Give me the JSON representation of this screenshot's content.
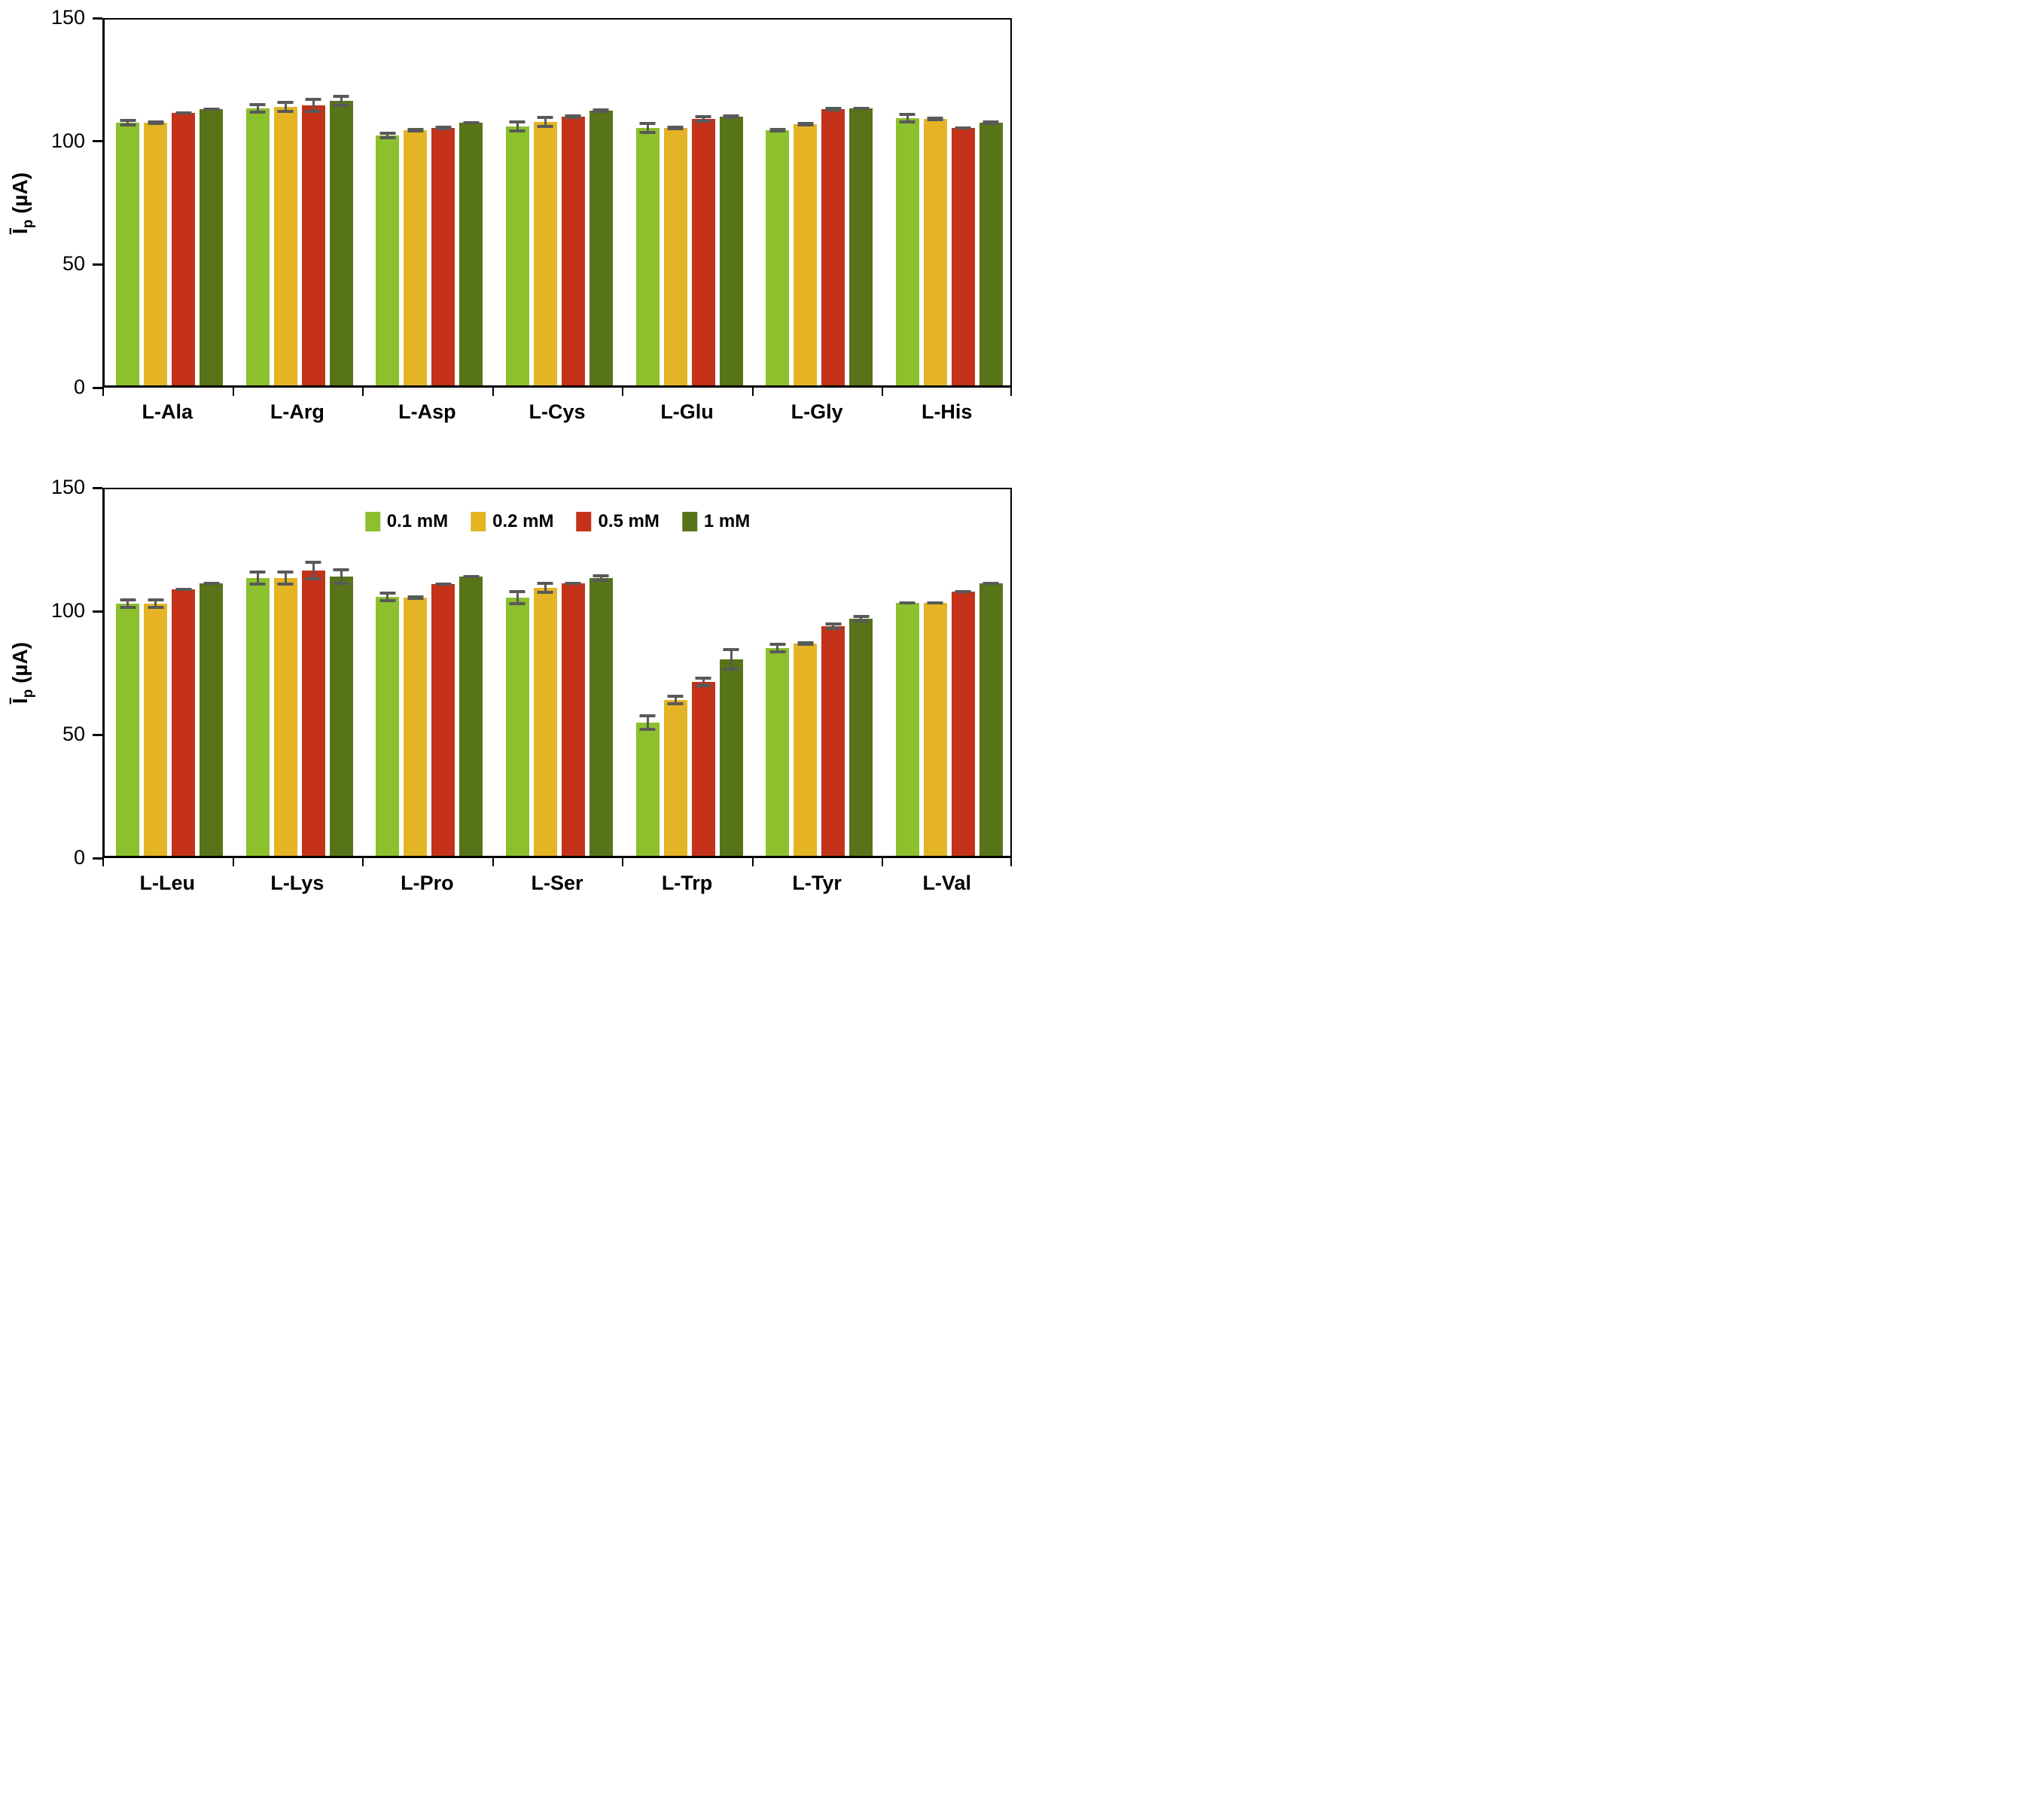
{
  "figure": {
    "y_axis_label": {
      "base": "Ī",
      "sub": "p",
      "units": "(µA)"
    },
    "colors": {
      "series": [
        "#8cc02c",
        "#e4b424",
        "#c33219",
        "#587418"
      ],
      "error_bar": "#595959",
      "axis": "#000000",
      "background": "#ffffff"
    },
    "legend": {
      "items": [
        "0.1 mM",
        "0.2 mM",
        "0.5 mM",
        "1 mM"
      ],
      "position": "inside-top-center-of-bottom-panel"
    }
  },
  "chart_data": [
    {
      "type": "bar",
      "panel": "top",
      "title": "",
      "xlabel": "",
      "ylabel": "Īp (µA)",
      "ylim": [
        0,
        150
      ],
      "yticks": [
        0,
        50,
        100,
        150
      ],
      "grid": false,
      "categories": [
        "L-Ala",
        "L-Arg",
        "L-Asp",
        "L-Cys",
        "L-Glu",
        "L-Gly",
        "L-His"
      ],
      "series": [
        {
          "name": "0.1 mM",
          "color": "#8cc02c",
          "values": [
            106.5,
            112.5,
            101.5,
            105,
            104.5,
            103.5,
            108.5
          ],
          "errors": [
            1.5,
            2,
            1.5,
            2.5,
            2.5,
            1,
            2
          ]
        },
        {
          "name": "0.2 mM",
          "color": "#e4b424",
          "values": [
            106.5,
            113,
            103.5,
            107,
            104.5,
            106,
            108
          ],
          "errors": [
            1,
            2.5,
            1,
            2.5,
            1,
            1,
            1
          ]
        },
        {
          "name": "0.5 mM",
          "color": "#c33219",
          "values": [
            110.5,
            113.5,
            104.5,
            109,
            108,
            112,
            104.5
          ],
          "errors": [
            0.5,
            3,
            1,
            1,
            1.5,
            1,
            0.5
          ]
        },
        {
          "name": "1 mM",
          "color": "#587418",
          "values": [
            112,
            115.5,
            106.5,
            111.5,
            109,
            112.5,
            106.5
          ],
          "errors": [
            0.5,
            2.5,
            0.5,
            1,
            1,
            0.5,
            1
          ]
        }
      ]
    },
    {
      "type": "bar",
      "panel": "bottom",
      "title": "",
      "xlabel": "",
      "ylabel": "Īp (µA)",
      "ylim": [
        0,
        150
      ],
      "yticks": [
        0,
        50,
        100,
        150
      ],
      "grid": false,
      "legend": true,
      "categories": [
        "L-Leu",
        "L-Lys",
        "L-Pro",
        "L-Ser",
        "L-Trp",
        "L-Tyr",
        "L-Val"
      ],
      "series": [
        {
          "name": "0.1 mM",
          "color": "#8cc02c",
          "values": [
            102,
            112.5,
            105,
            104.5,
            54,
            84,
            102.5
          ],
          "errors": [
            2,
            3,
            2,
            3,
            3.5,
            2,
            0.5
          ]
        },
        {
          "name": "0.2 mM",
          "color": "#e4b424",
          "values": [
            102,
            112.5,
            104.5,
            108.5,
            63,
            86,
            102.5
          ],
          "errors": [
            2,
            3,
            1,
            2.5,
            2,
            1,
            0.5
          ]
        },
        {
          "name": "0.5 mM",
          "color": "#c33219",
          "values": [
            108,
            115.5,
            110,
            110.5,
            70.5,
            93,
            107
          ],
          "errors": [
            0.5,
            4,
            0.5,
            0.5,
            2,
            1.5,
            0.5
          ]
        },
        {
          "name": "1 mM",
          "color": "#587418",
          "values": [
            110.5,
            113,
            113,
            112.5,
            79.5,
            96,
            110.5
          ],
          "errors": [
            0.5,
            3.5,
            0.5,
            1.5,
            4.5,
            1.5,
            0.5
          ]
        }
      ]
    }
  ]
}
